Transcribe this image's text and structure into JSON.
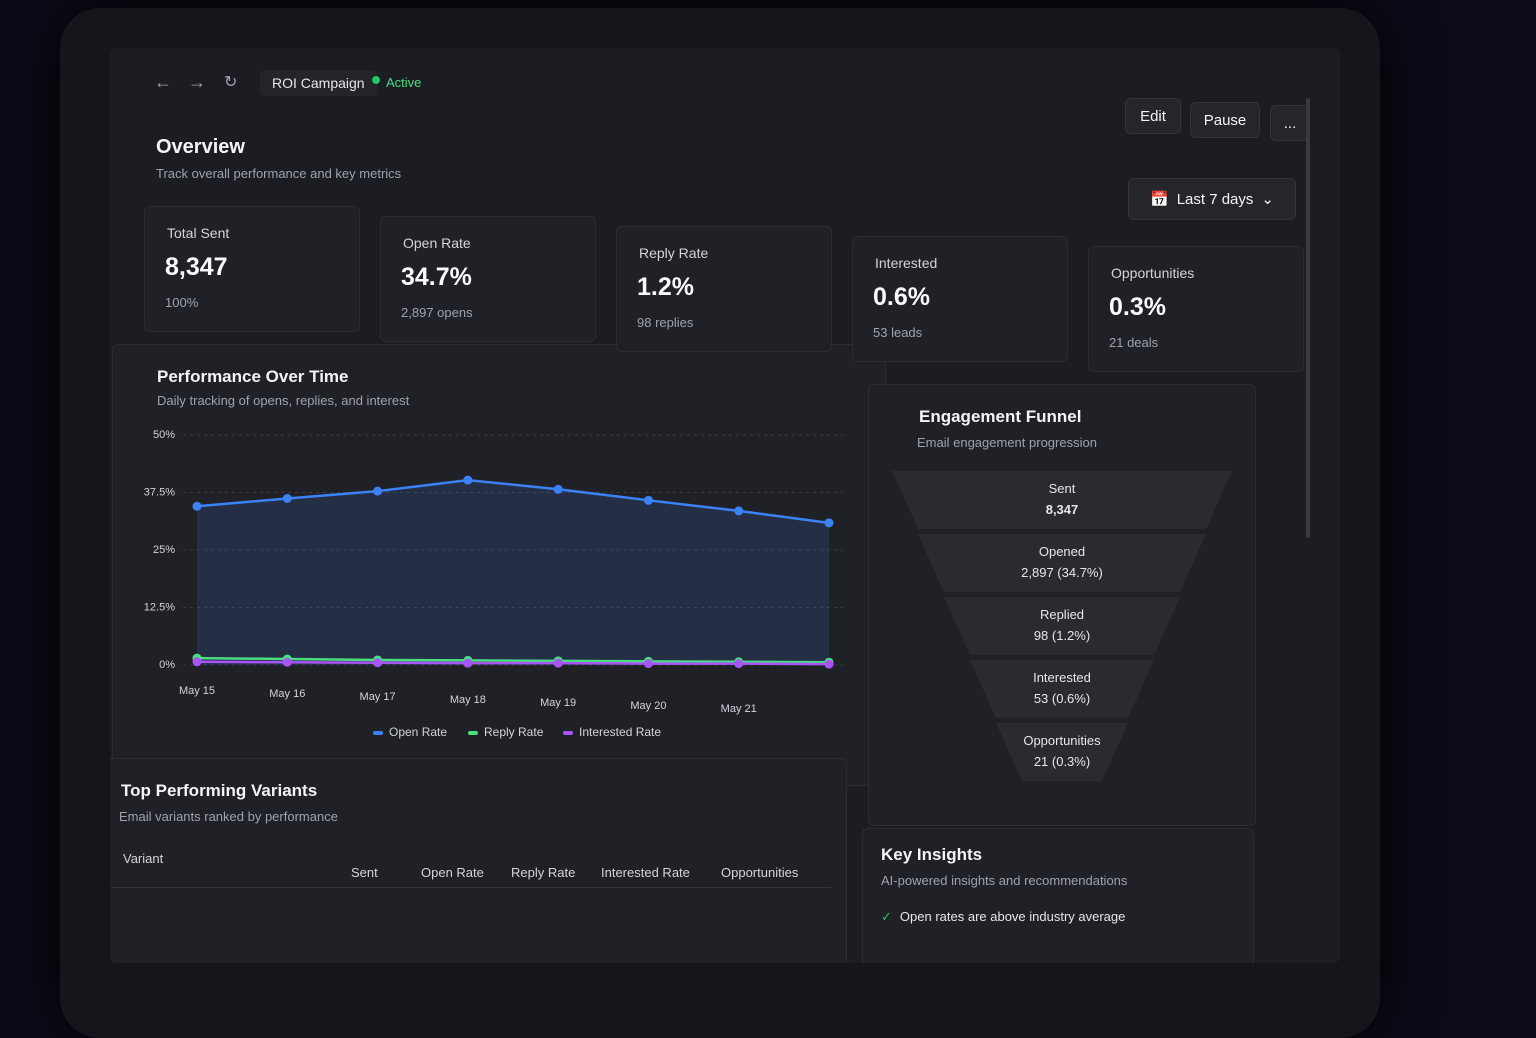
{
  "header": {
    "campaign": "ROI Campaign",
    "status": "Active",
    "actions": [
      "Edit",
      "Pause",
      "..."
    ]
  },
  "overview": {
    "title": "Overview",
    "subtitle": "Track overall performance and key metrics",
    "range": "Last 7 days"
  },
  "metrics": [
    {
      "label": "Total Sent",
      "value": "8,347",
      "note": "100%"
    },
    {
      "label": "Open Rate",
      "value": "34.7%",
      "note": "2,897 opens"
    },
    {
      "label": "Reply Rate",
      "value": "1.2%",
      "note": "98 replies"
    },
    {
      "label": "Interested",
      "value": "0.6%",
      "note": "53 leads"
    },
    {
      "label": "Opportunities",
      "value": "0.3%",
      "note": "21 deals"
    }
  ],
  "performance": {
    "title": "Performance Over Time",
    "subtitle": "Daily tracking of opens, replies, and interest",
    "chart": {
      "type": "line",
      "categories": [
        "May 15",
        "May 16",
        "May 17",
        "May 18",
        "May 19",
        "May 20",
        "May 21",
        null
      ],
      "ylim": [
        0,
        50
      ],
      "yticks": [
        {
          "value": 0,
          "label": "0%"
        },
        {
          "value": 12.5,
          "label": "12.5%"
        },
        {
          "value": 25,
          "label": "25%"
        },
        {
          "value": 37.5,
          "label": "37.5%"
        },
        {
          "value": 50,
          "label": "50%"
        }
      ],
      "grid": true,
      "series": [
        {
          "name": "Open Rate",
          "color": "#3b82f6",
          "values": [
            34.5,
            36.2,
            37.8,
            40.2,
            38.2,
            35.8,
            33.5,
            30.9
          ]
        },
        {
          "name": "Reply Rate",
          "color": "#4ade80",
          "values": [
            1.5,
            1.3,
            1.1,
            1.0,
            0.9,
            0.8,
            0.7,
            0.6
          ]
        },
        {
          "name": "Interested Rate",
          "color": "#a855f7",
          "values": [
            0.7,
            0.6,
            0.5,
            0.4,
            0.4,
            0.3,
            0.3,
            0.2
          ]
        }
      ]
    }
  },
  "funnel": {
    "title": "Engagement Funnel",
    "subtitle": "Email engagement progression",
    "stages": [
      {
        "label": "Sent",
        "value": "8,347"
      },
      {
        "label": "Opened",
        "value": "2,897 (34.7%)"
      },
      {
        "label": "Replied",
        "value": "98 (1.2%)"
      },
      {
        "label": "Interested",
        "value": "53 (0.6%)"
      },
      {
        "label": "Opportunities",
        "value": "21 (0.3%)"
      }
    ]
  },
  "variants": {
    "title": "Top Performing Variants",
    "subtitle": "Email variants ranked by performance",
    "columns": [
      "Variant",
      "Sent",
      "Open Rate",
      "Reply Rate",
      "Interested Rate",
      "Opportunities"
    ]
  },
  "insights": {
    "title": "Key Insights",
    "subtitle": "AI-powered insights and recommendations",
    "items": [
      "Open rates are above industry average"
    ]
  }
}
